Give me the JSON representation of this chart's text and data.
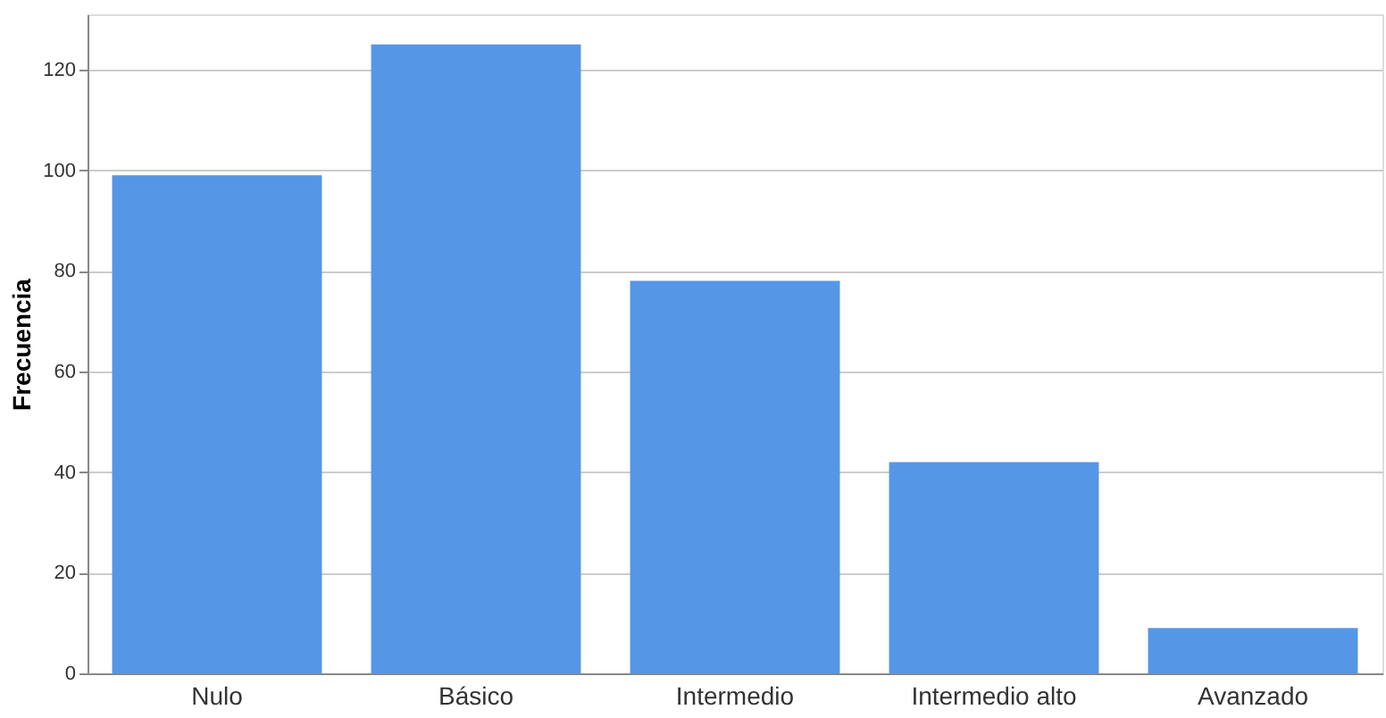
{
  "chart_data": {
    "type": "bar",
    "ylabel": "Frecuencia",
    "categories": [
      "Nulo",
      "Básico",
      "Intermedio",
      "Intermedio alto",
      "Avanzado"
    ],
    "values": [
      99,
      125,
      78,
      42,
      9
    ],
    "color": "#5596e6",
    "ylim": [
      0,
      131
    ],
    "yticks": [
      0,
      20,
      40,
      60,
      80,
      100,
      120
    ],
    "grid": "y"
  }
}
